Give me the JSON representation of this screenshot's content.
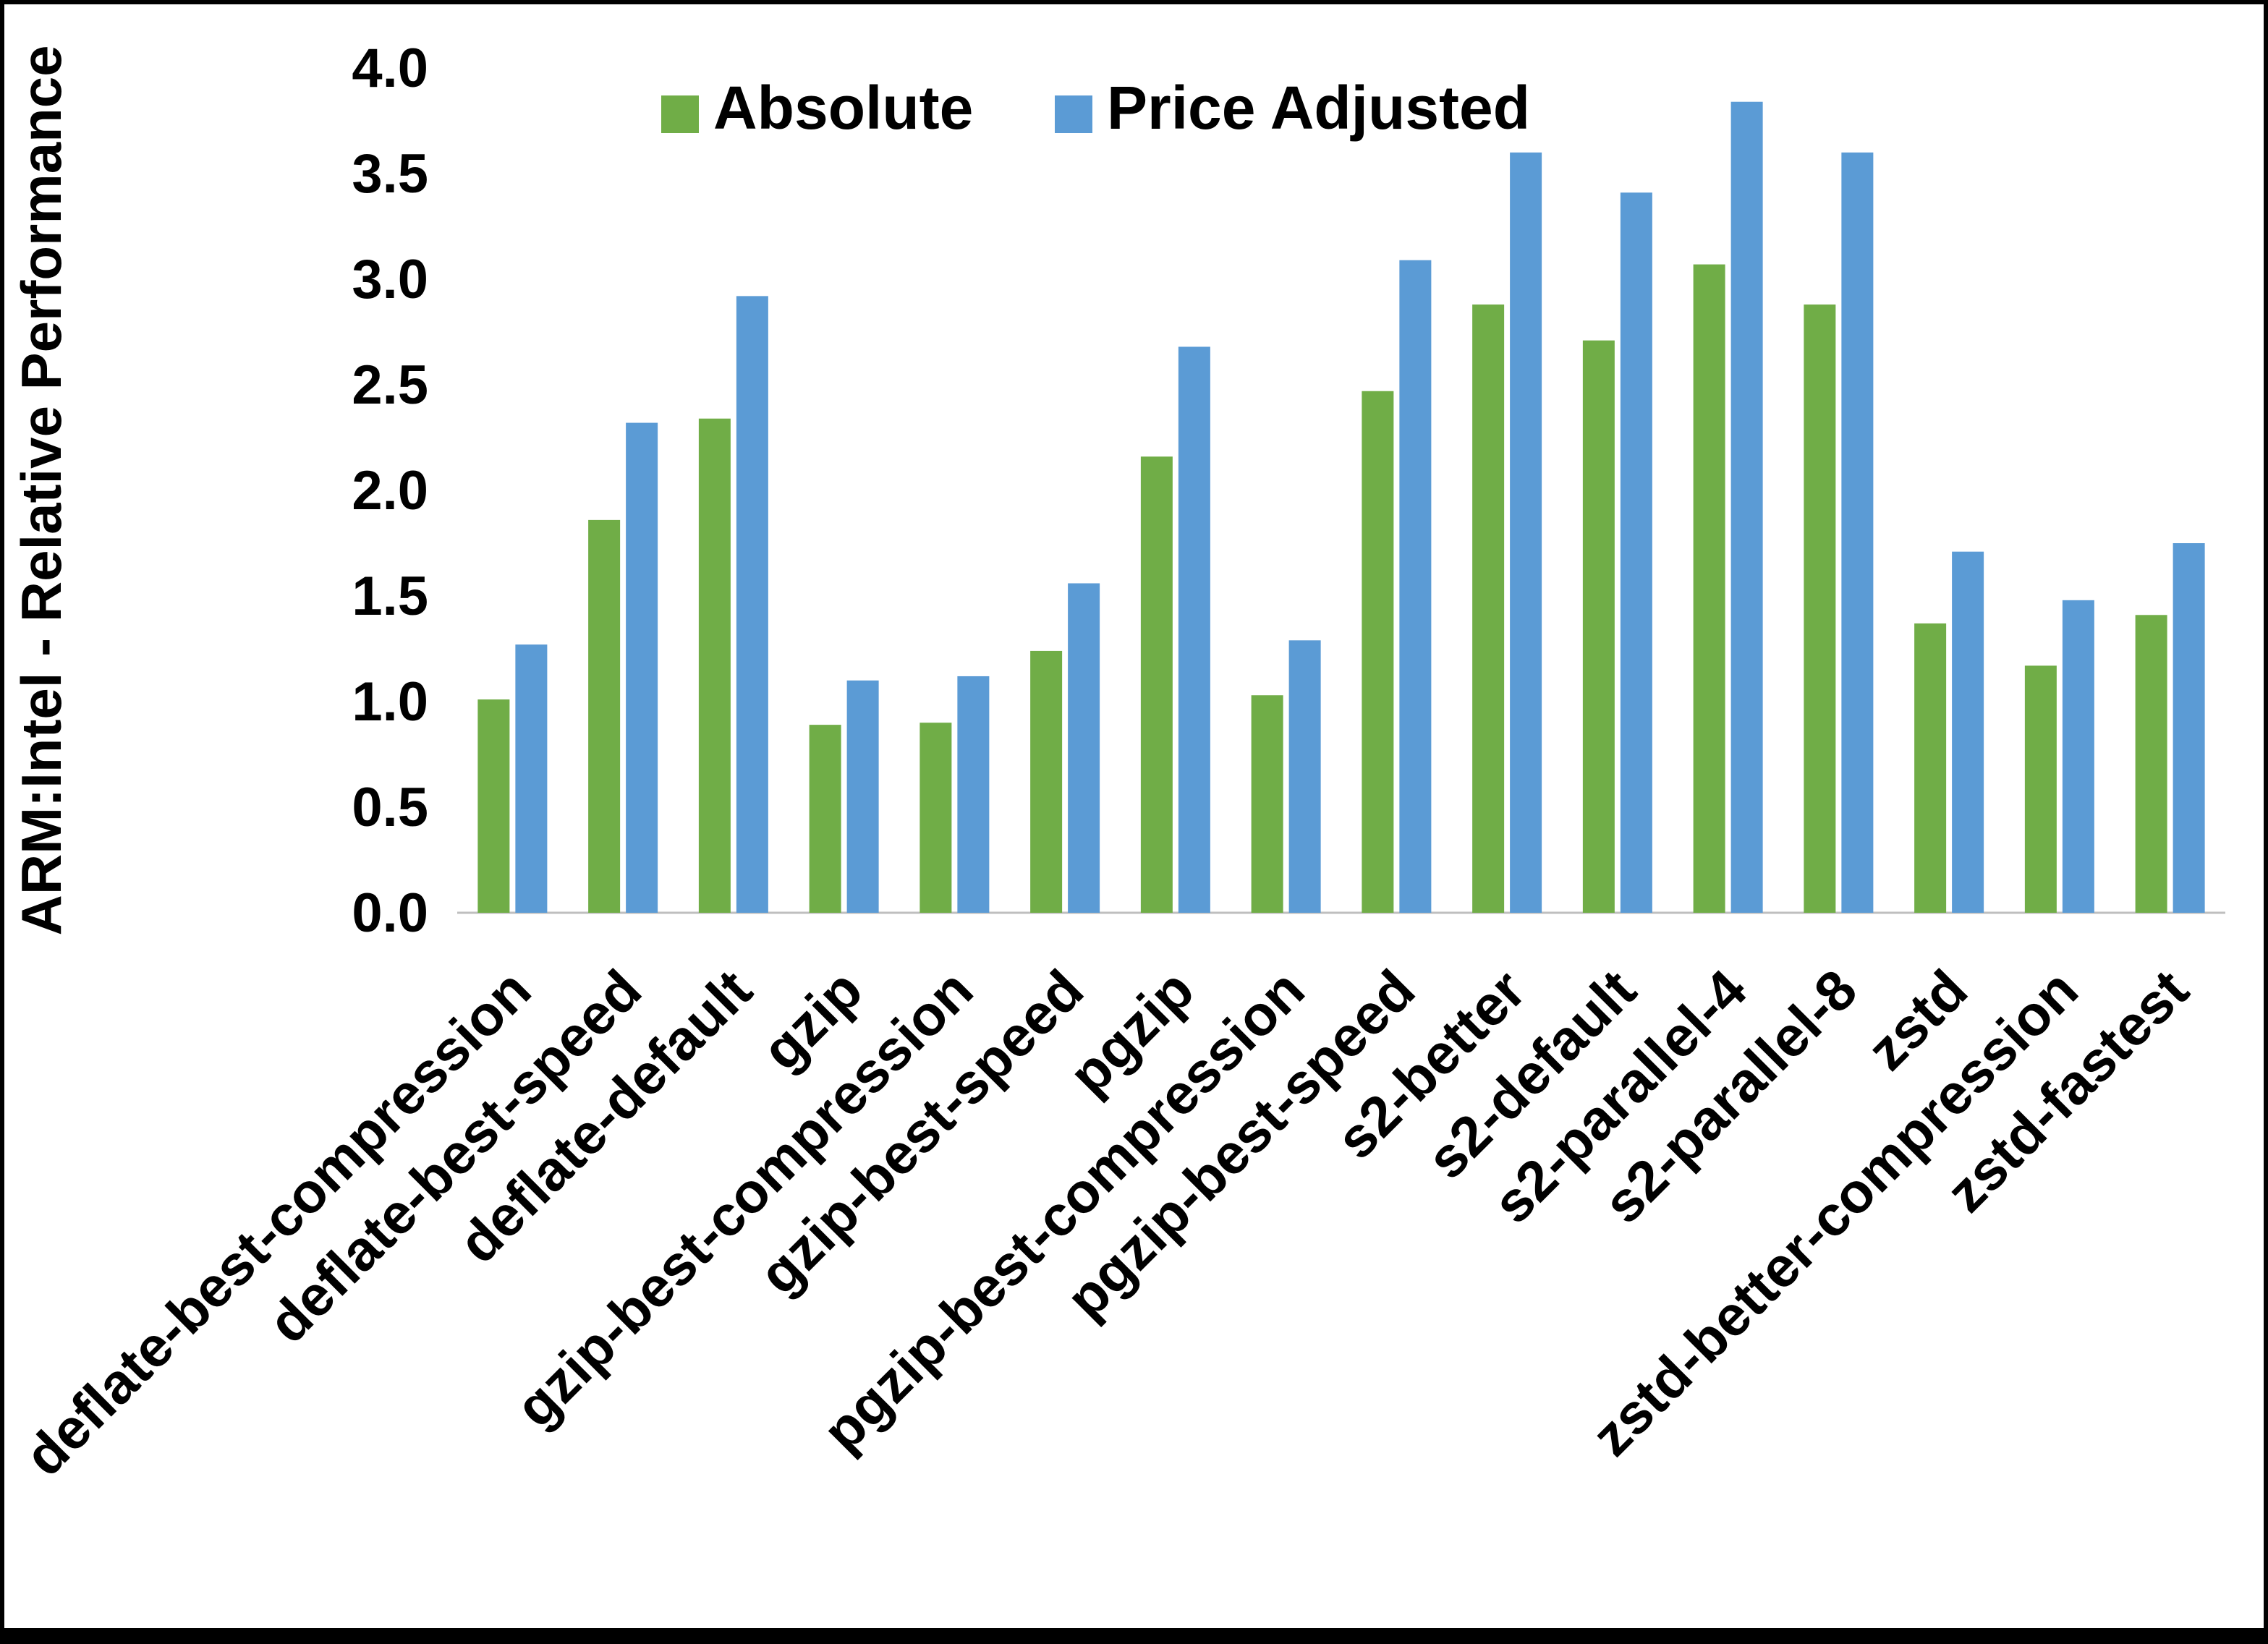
{
  "chart_data": {
    "type": "bar",
    "title": "",
    "xlabel": "",
    "ylabel": "ARM:Intel - Relative Performance",
    "ylim": [
      0.0,
      4.0
    ],
    "ytick_step": 0.5,
    "yticks": [
      0.0,
      0.5,
      1.0,
      1.5,
      2.0,
      2.5,
      3.0,
      3.5,
      4.0
    ],
    "grid": false,
    "legend_position": "top",
    "categories": [
      "deflate-best-compression",
      "deflate-best-speed",
      "deflate-default",
      "gzip",
      "gzip-best-compression",
      "gzip-best-speed",
      "pgzip",
      "pgzip-best-compression",
      "pgzip-best-speed",
      "s2-better",
      "s2-default",
      "s2-parallel-4",
      "s2-parallel-8",
      "zstd",
      "zstd-better-compression",
      "zstd-fastest"
    ],
    "series": [
      {
        "name": "Absolute",
        "color": "#70AD47",
        "values": [
          1.01,
          1.86,
          2.34,
          0.89,
          0.9,
          1.24,
          2.16,
          1.03,
          2.47,
          2.88,
          2.71,
          3.07,
          2.88,
          1.37,
          1.17,
          1.41
        ]
      },
      {
        "name": "Price Adjusted",
        "color": "#5B9BD5",
        "values": [
          1.27,
          2.32,
          2.92,
          1.1,
          1.12,
          1.56,
          2.68,
          1.29,
          3.09,
          3.6,
          3.41,
          3.84,
          3.6,
          1.71,
          1.48,
          1.75
        ]
      }
    ],
    "colors": {
      "axis_line": "#BFBFBF",
      "text": "#000000"
    }
  }
}
